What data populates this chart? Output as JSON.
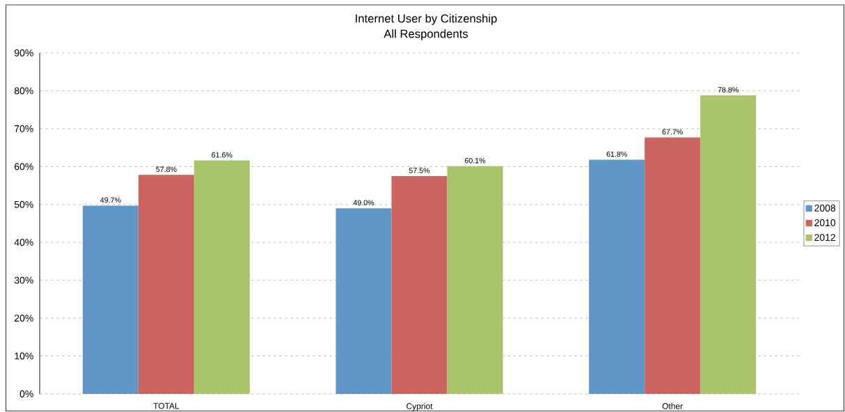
{
  "chart_data": {
    "type": "bar",
    "title": "Internet User by Citizenship",
    "subtitle": "All Respondents",
    "categories": [
      "TOTAL",
      "Cypriot",
      "Other"
    ],
    "series": [
      {
        "name": "2008",
        "color": "#6096C8",
        "values": [
          49.7,
          49.0,
          61.8
        ],
        "value_labels": [
          "49.7%",
          "49.0%",
          "61.8%"
        ]
      },
      {
        "name": "2010",
        "color": "#CC6560",
        "values": [
          57.8,
          57.5,
          67.7
        ],
        "value_labels": [
          "57.8%",
          "57.5%",
          "67.7%"
        ]
      },
      {
        "name": "2012",
        "color": "#AAC46A",
        "values": [
          61.6,
          60.1,
          78.8
        ],
        "value_labels": [
          "61.6%",
          "60.1%",
          "78.8%"
        ]
      }
    ],
    "ylim": [
      0,
      90
    ],
    "yticks": [
      {
        "value": 0,
        "label": "0%"
      },
      {
        "value": 10,
        "label": "10%"
      },
      {
        "value": 20,
        "label": "20%"
      },
      {
        "value": 30,
        "label": "30%"
      },
      {
        "value": 40,
        "label": "40%"
      },
      {
        "value": 50,
        "label": "50%"
      },
      {
        "value": 60,
        "label": "60%"
      },
      {
        "value": 70,
        "label": "70%"
      },
      {
        "value": 80,
        "label": "80%"
      },
      {
        "value": 90,
        "label": "90%"
      }
    ],
    "grid": "y",
    "legend": "right"
  }
}
